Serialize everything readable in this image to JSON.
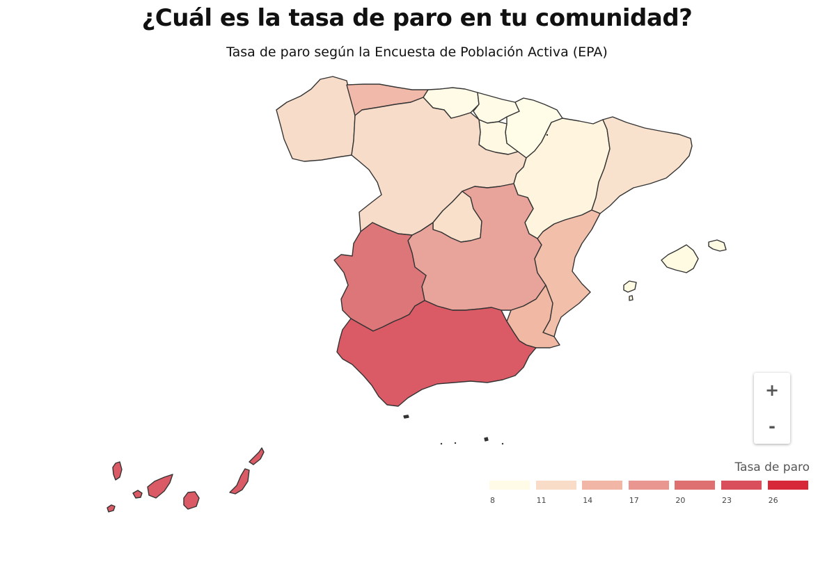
{
  "header": {
    "title": "¿Cuál es la tasa de paro en tu comunidad?",
    "subtitle": "Tasa de paro según la Encuesta de Población Activa (EPA)"
  },
  "map": {
    "regions": [
      {
        "key": "galicia",
        "color": "#f6dcc9"
      },
      {
        "key": "asturias",
        "color": "#f0b9a9"
      },
      {
        "key": "cantabria",
        "color": "#fffbe6"
      },
      {
        "key": "pais-vasco",
        "color": "#fffbe6"
      },
      {
        "key": "navarra",
        "color": "#fffde8"
      },
      {
        "key": "la-rioja",
        "color": "#fff9e3"
      },
      {
        "key": "castilla-y-leon",
        "color": "#f6dcc9"
      },
      {
        "key": "aragon",
        "color": "#fff5de"
      },
      {
        "key": "cataluna",
        "color": "#f8e2cd"
      },
      {
        "key": "madrid",
        "color": "#f8e0cb"
      },
      {
        "key": "castilla-la-mancha",
        "color": "#e8a39a"
      },
      {
        "key": "extremadura",
        "color": "#dd7678"
      },
      {
        "key": "comunidad-valenciana",
        "color": "#f2bfaa"
      },
      {
        "key": "murcia",
        "color": "#f1b8a3"
      },
      {
        "key": "andalucia",
        "color": "#da5a66"
      },
      {
        "key": "baleares",
        "color": "#fffae2"
      },
      {
        "key": "canarias",
        "color": "#da5a66"
      },
      {
        "key": "ceuta",
        "color": "#333333"
      },
      {
        "key": "melilla",
        "color": "#333333"
      }
    ]
  },
  "zoom": {
    "plus_label": "+",
    "minus_label": "-"
  },
  "legend": {
    "title": "Tasa de paro",
    "colors": [
      "#fffbe6",
      "#f8dcc8",
      "#f1b6a6",
      "#e8968f",
      "#df7072",
      "#da4f5c",
      "#d62839"
    ],
    "ticks": [
      "8",
      "11",
      "14",
      "17",
      "20",
      "23",
      "26"
    ]
  }
}
